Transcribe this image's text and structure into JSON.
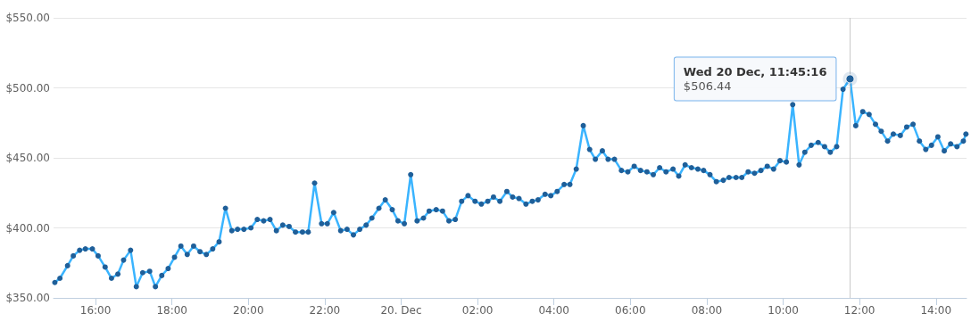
{
  "chart_data": {
    "type": "line",
    "x": [
      "--12-19T14:56",
      "--12-19T15:04",
      "--12-19T15:16",
      "--12-19T15:25",
      "--12-19T15:35",
      "--12-19T15:44",
      "--12-19T15:55",
      "--12-19T16:04",
      "--12-19T16:15",
      "--12-19T16:25",
      "--12-19T16:35",
      "--12-19T16:44",
      "--12-19T16:55",
      "--12-19T17:04",
      "--12-19T17:14",
      "--12-19T17:25",
      "--12-19T17:34",
      "--12-19T17:44",
      "--12-19T17:54",
      "--12-19T18:04",
      "--12-19T18:14",
      "--12-19T18:24",
      "--12-19T18:34",
      "--12-19T18:44",
      "--12-19T18:54",
      "--12-19T19:04",
      "--12-19T19:14",
      "--12-19T19:24",
      "--12-19T19:34",
      "--12-19T19:43",
      "--12-19T19:53",
      "--12-19T20:04",
      "--12-19T20:14",
      "--12-19T20:24",
      "--12-19T20:34",
      "--12-19T20:44",
      "--12-19T20:54",
      "--12-19T21:04",
      "--12-19T21:14",
      "--12-19T21:25",
      "--12-19T21:34",
      "--12-19T21:44",
      "--12-19T21:55",
      "--12-19T22:04",
      "--12-19T22:14",
      "--12-19T22:25",
      "--12-19T22:35",
      "--12-19T22:45",
      "--12-19T22:55",
      "--12-19T23:05",
      "--12-19T23:14",
      "--12-19T23:25",
      "--12-19T23:35",
      "--12-19T23:46",
      "--12-19T23:55",
      "--12-20T00:05",
      "--12-20T00:15",
      "--12-20T00:25",
      "--12-20T00:35",
      "--12-20T00:44",
      "--12-20T00:55",
      "--12-20T01:05",
      "--12-20T01:15",
      "--12-20T01:25",
      "--12-20T01:35",
      "--12-20T01:45",
      "--12-20T01:56",
      "--12-20T02:06",
      "--12-20T02:16",
      "--12-20T02:25",
      "--12-20T02:35",
      "--12-20T02:46",
      "--12-20T02:55",
      "--12-20T03:05",
      "--12-20T03:16",
      "--12-20T03:26",
      "--12-20T03:35",
      "--12-20T03:46",
      "--12-20T03:55",
      "--12-20T04:05",
      "--12-20T04:16",
      "--12-20T04:25",
      "--12-20T04:35",
      "--12-20T04:46",
      "--12-20T04:56",
      "--12-20T05:05",
      "--12-20T05:16",
      "--12-20T05:25",
      "--12-20T05:35",
      "--12-20T05:46",
      "--12-20T05:56",
      "--12-20T06:06",
      "--12-20T06:16",
      "--12-20T06:26",
      "--12-20T06:36",
      "--12-20T06:46",
      "--12-20T06:56",
      "--12-20T07:07",
      "--12-20T07:16",
      "--12-20T07:26",
      "--12-20T07:36",
      "--12-20T07:46",
      "--12-20T07:55",
      "--12-20T08:05",
      "--12-20T08:15",
      "--12-20T08:26",
      "--12-20T08:35",
      "--12-20T08:46",
      "--12-20T08:55",
      "--12-20T09:05",
      "--12-20T09:15",
      "--12-20T09:25",
      "--12-20T09:35",
      "--12-20T09:45",
      "--12-20T09:55",
      "--12-20T10:05",
      "--12-20T10:15",
      "--12-20T10:25",
      "--12-20T10:34",
      "--12-20T10:44",
      "--12-20T10:55",
      "--12-20T11:05",
      "--12-20T11:14",
      "--12-20T11:24",
      "--12-20T11:34",
      "--12-20T11:45",
      "--12-20T11:54",
      "--12-20T12:05",
      "--12-20T12:15",
      "--12-20T12:25",
      "--12-20T12:34",
      "--12-20T12:44",
      "--12-20T12:53",
      "--12-20T13:04",
      "--12-20T13:14",
      "--12-20T13:24",
      "--12-20T13:34",
      "--12-20T13:44",
      "--12-20T13:53",
      "--12-20T14:03",
      "--12-20T14:13",
      "--12-20T14:23",
      "--12-20T14:33",
      "--12-20T14:43",
      "--12-20T14:47"
    ],
    "series": [
      {
        "color": "#1f5f99",
        "values": [
          361,
          364,
          373,
          380,
          384,
          385,
          385,
          380,
          372,
          364,
          367,
          377,
          384,
          358,
          368,
          369,
          358,
          366,
          371,
          379,
          387,
          381,
          387,
          383,
          381,
          385,
          390,
          414,
          398,
          399,
          399,
          400,
          406,
          405,
          406,
          398,
          402,
          401,
          397,
          397,
          397,
          432,
          403,
          403,
          411,
          398,
          399,
          395,
          399,
          402,
          407,
          414,
          420,
          413,
          405,
          403,
          438,
          405,
          407,
          412,
          413,
          412,
          405,
          406,
          419,
          423,
          419,
          417,
          419,
          422,
          419,
          426,
          422,
          421,
          417,
          419,
          420,
          424,
          423,
          426,
          431,
          431,
          442,
          473,
          456,
          449,
          455,
          449,
          449,
          441,
          440,
          444,
          441,
          440,
          438,
          443,
          440,
          442,
          437,
          445,
          443,
          442,
          441,
          438,
          433,
          434,
          436,
          436,
          436,
          440,
          439,
          441,
          444,
          442,
          448,
          447,
          488,
          445,
          454,
          459,
          461,
          458,
          454,
          458,
          499,
          506.44,
          473,
          483,
          481,
          474,
          469,
          462,
          467,
          466,
          472,
          474,
          462,
          456,
          459,
          465,
          455,
          460,
          458,
          462,
          467
        ]
      }
    ],
    "xlim": [
      "--12-19T14:54",
      "--12-20T14:48"
    ],
    "xticks": [
      {
        "value": "--12-19T16:00",
        "label": "16:00"
      },
      {
        "value": "--12-19T18:00",
        "label": "18:00"
      },
      {
        "value": "--12-19T20:00",
        "label": "20:00"
      },
      {
        "value": "--12-19T22:00",
        "label": "22:00"
      },
      {
        "value": "--12-20T00:00",
        "label": "20. Dec"
      },
      {
        "value": "--12-20T02:00",
        "label": "02:00"
      },
      {
        "value": "--12-20T04:00",
        "label": "04:00"
      },
      {
        "value": "--12-20T06:00",
        "label": "06:00"
      },
      {
        "value": "--12-20T08:00",
        "label": "08:00"
      },
      {
        "value": "--12-20T10:00",
        "label": "10:00"
      },
      {
        "value": "--12-20T12:00",
        "label": "12:00"
      },
      {
        "value": "--12-20T14:00",
        "label": "14:00"
      }
    ],
    "ylim": [
      350,
      550
    ],
    "yticks": [
      {
        "value": 350,
        "label": "$350.00"
      },
      {
        "value": 400,
        "label": "$400.00"
      },
      {
        "value": 450,
        "label": "$450.00"
      },
      {
        "value": 500,
        "label": "$500.00"
      },
      {
        "value": 550,
        "label": "$550.00"
      }
    ],
    "grid": "y",
    "marker": "circle",
    "ref_lines": [
      {
        "axis": "x",
        "value": "--12-20T11:45",
        "color": "#c8c8c8"
      }
    ],
    "annotations": [
      {
        "text": "Wed 20 Dec, 11:45:16",
        "x": "--12-20T11:45",
        "y": 506.44
      },
      "$506.44"
    ]
  }
}
